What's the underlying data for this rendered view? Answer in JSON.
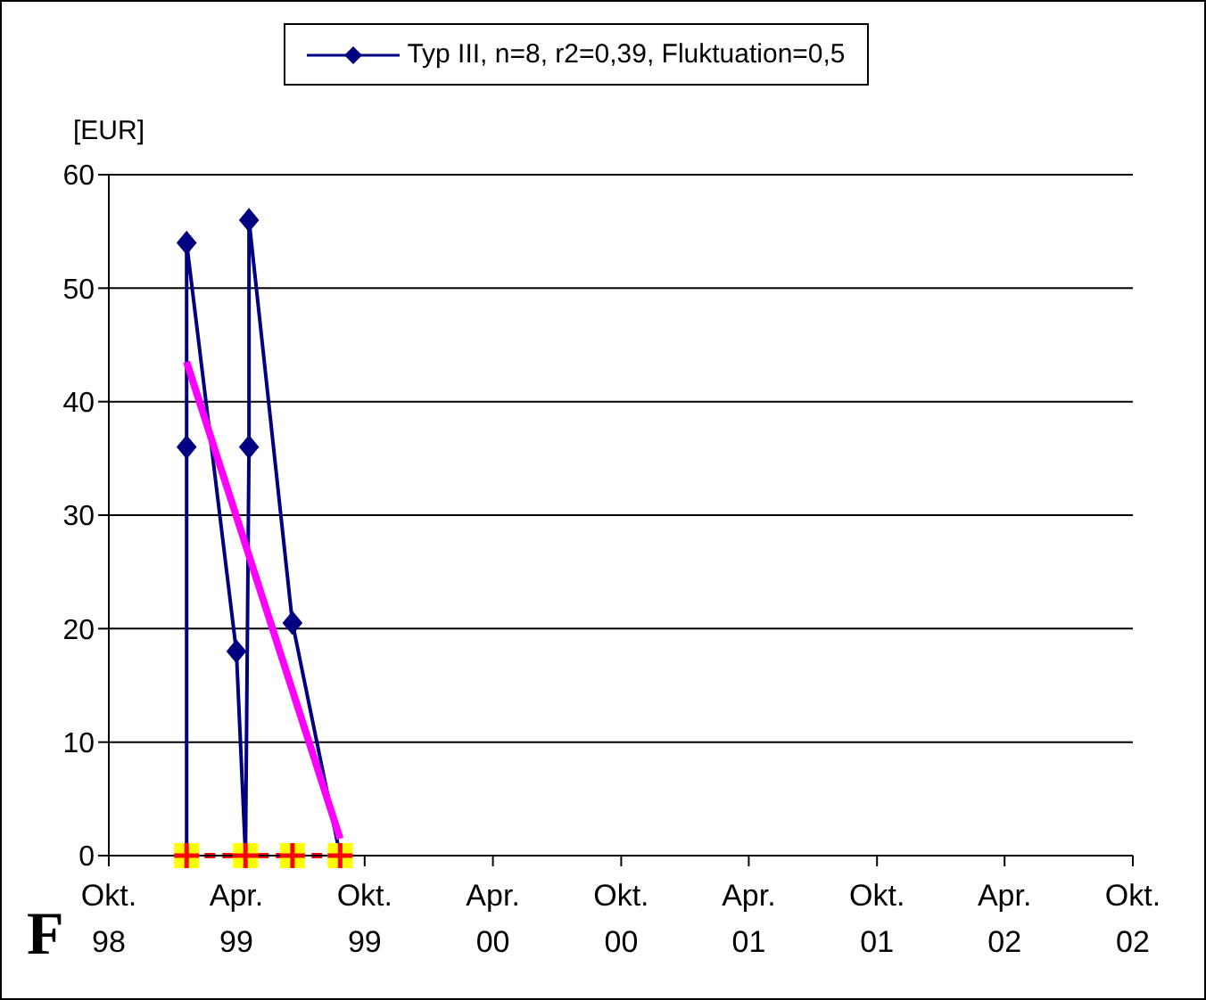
{
  "chart_data": {
    "type": "line",
    "ylabel": "[EUR]",
    "annotations": [
      "F"
    ],
    "xlim": [
      "1998-10",
      "2002-10"
    ],
    "xticks": [
      {
        "value": "1998-10",
        "label": "Okt. 98"
      },
      {
        "value": "1999-04",
        "label": "Apr. 99"
      },
      {
        "value": "1999-10",
        "label": "Okt. 99"
      },
      {
        "value": "2000-04",
        "label": "Apr. 00"
      },
      {
        "value": "2000-10",
        "label": "Okt. 00"
      },
      {
        "value": "2001-04",
        "label": "Apr. 01"
      },
      {
        "value": "2001-10",
        "label": "Okt. 01"
      },
      {
        "value": "2002-04",
        "label": "Apr. 02"
      },
      {
        "value": "2002-10",
        "label": "Okt. 02"
      }
    ],
    "ylim": [
      0,
      60
    ],
    "yticks": [
      0,
      10,
      20,
      30,
      40,
      50,
      60
    ],
    "grid": "y",
    "legend": "top",
    "series": [
      {
        "name": "Typ III, n=8, r2=0,39, Fluktuation=0,5",
        "color": "#000080",
        "marker": "diamond",
        "x": [
          "1999-01-20",
          "1999-01-20",
          "1999-01-20",
          "1999-04-01",
          "1999-04-14",
          "1999-04-19",
          "1999-04-19",
          "1999-06-20",
          "1999-08-27"
        ],
        "values": [
          0,
          36,
          54,
          18,
          0,
          36,
          56,
          20.5,
          0
        ]
      },
      {
        "color": "#ff0000",
        "marker": "cross",
        "line_style": "dashed",
        "x": [
          "1999-01-20",
          "1999-04-14",
          "1999-06-20",
          "1999-08-27"
        ],
        "values": [
          0,
          0,
          0,
          0
        ]
      },
      {
        "color": "#ff00ff",
        "marker": "none",
        "x": [
          "1999-01-20",
          "1999-08-27"
        ],
        "values": [
          43.5,
          1.5
        ]
      }
    ]
  }
}
